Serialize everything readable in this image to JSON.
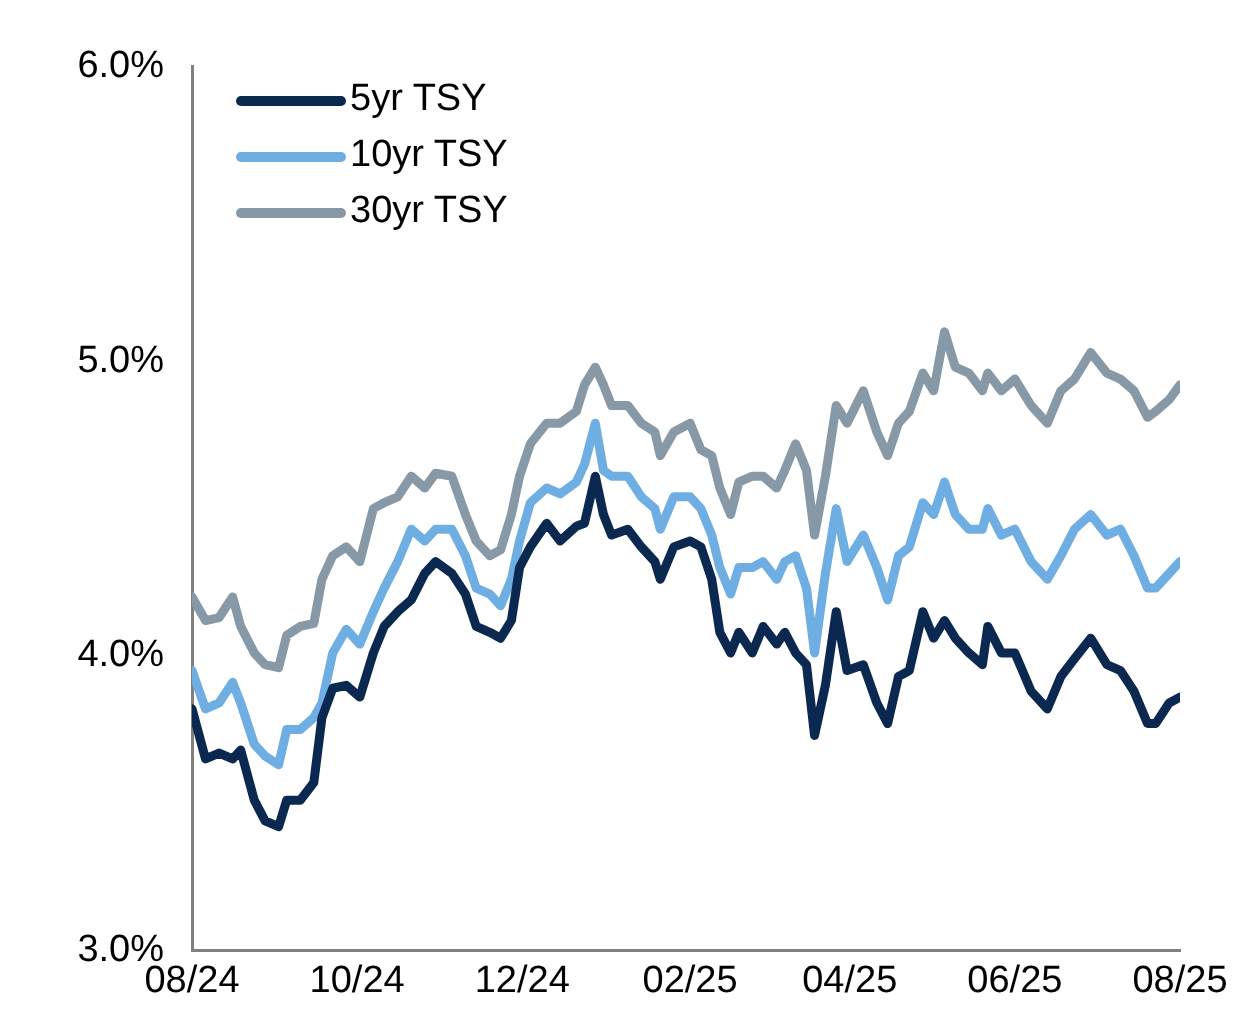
{
  "chart_data": {
    "type": "line",
    "x": [
      "2024-08-01",
      "2024-08-06",
      "2024-08-11",
      "2024-08-16",
      "2024-08-19",
      "2024-08-24",
      "2024-08-28",
      "2024-09-02",
      "2024-09-05",
      "2024-09-10",
      "2024-09-15",
      "2024-09-18",
      "2024-09-22",
      "2024-09-27",
      "2024-10-02",
      "2024-10-07",
      "2024-10-11",
      "2024-10-16",
      "2024-10-21",
      "2024-10-26",
      "2024-10-30",
      "2024-11-05",
      "2024-11-10",
      "2024-11-14",
      "2024-11-19",
      "2024-11-23",
      "2024-11-27",
      "2024-11-30",
      "2024-12-04",
      "2024-12-10",
      "2024-12-15",
      "2024-12-21",
      "2024-12-24",
      "2024-12-28",
      "2024-12-31",
      "2025-01-03",
      "2025-01-09",
      "2025-01-14",
      "2025-01-19",
      "2025-01-21",
      "2025-01-26",
      "2025-02-01",
      "2025-02-05",
      "2025-02-09",
      "2025-02-12",
      "2025-02-16",
      "2025-02-19",
      "2025-02-24",
      "2025-02-28",
      "2025-03-05",
      "2025-03-08",
      "2025-03-12",
      "2025-03-16",
      "2025-03-19",
      "2025-03-23",
      "2025-03-27",
      "2025-03-31",
      "2025-04-06",
      "2025-04-11",
      "2025-04-15",
      "2025-04-19",
      "2025-04-23",
      "2025-04-28",
      "2025-05-02",
      "2025-05-06",
      "2025-05-10",
      "2025-05-15",
      "2025-05-20",
      "2025-05-22",
      "2025-05-27",
      "2025-06-01",
      "2025-06-07",
      "2025-06-13",
      "2025-06-18",
      "2025-06-23",
      "2025-06-29",
      "2025-07-05",
      "2025-07-10",
      "2025-07-15",
      "2025-07-20",
      "2025-07-23",
      "2025-07-28",
      "2025-08-01"
    ],
    "series": [
      {
        "name": "5yr TSY",
        "color": "#0a2850",
        "values": [
          3.82,
          3.65,
          3.67,
          3.65,
          3.68,
          3.51,
          3.44,
          3.42,
          3.51,
          3.51,
          3.57,
          3.79,
          3.89,
          3.9,
          3.86,
          4.01,
          4.1,
          4.15,
          4.19,
          4.28,
          4.32,
          4.28,
          4.21,
          4.1,
          4.08,
          4.06,
          4.12,
          4.3,
          4.37,
          4.45,
          4.39,
          4.44,
          4.45,
          4.61,
          4.48,
          4.41,
          4.43,
          4.37,
          4.32,
          4.26,
          4.37,
          4.39,
          4.37,
          4.26,
          4.08,
          4.01,
          4.08,
          4.01,
          4.1,
          4.04,
          4.08,
          4.01,
          3.97,
          3.73,
          3.9,
          4.15,
          3.95,
          3.97,
          3.84,
          3.77,
          3.93,
          3.95,
          4.15,
          4.06,
          4.12,
          4.06,
          4.01,
          3.97,
          4.1,
          4.01,
          4.01,
          3.88,
          3.82,
          3.93,
          3.99,
          4.06,
          3.97,
          3.95,
          3.88,
          3.77,
          3.77,
          3.84,
          3.86
        ]
      },
      {
        "name": "10yr TSY",
        "color": "#6faee3",
        "values": [
          3.95,
          3.82,
          3.84,
          3.91,
          3.84,
          3.7,
          3.66,
          3.63,
          3.75,
          3.75,
          3.79,
          3.84,
          4.01,
          4.09,
          4.04,
          4.15,
          4.23,
          4.32,
          4.43,
          4.39,
          4.43,
          4.43,
          4.34,
          4.23,
          4.21,
          4.17,
          4.26,
          4.39,
          4.52,
          4.57,
          4.55,
          4.59,
          4.65,
          4.79,
          4.63,
          4.61,
          4.61,
          4.54,
          4.5,
          4.43,
          4.54,
          4.54,
          4.5,
          4.41,
          4.3,
          4.21,
          4.3,
          4.3,
          4.32,
          4.26,
          4.32,
          4.34,
          4.23,
          4.01,
          4.28,
          4.5,
          4.32,
          4.41,
          4.3,
          4.19,
          4.34,
          4.37,
          4.52,
          4.48,
          4.59,
          4.48,
          4.43,
          4.43,
          4.5,
          4.41,
          4.43,
          4.32,
          4.26,
          4.34,
          4.43,
          4.48,
          4.41,
          4.43,
          4.34,
          4.23,
          4.23,
          4.28,
          4.32
        ]
      },
      {
        "name": "30yr TSY",
        "color": "#8799a6",
        "values": [
          4.2,
          4.12,
          4.13,
          4.2,
          4.1,
          4.01,
          3.97,
          3.96,
          4.07,
          4.1,
          4.11,
          4.26,
          4.34,
          4.37,
          4.32,
          4.5,
          4.52,
          4.54,
          4.61,
          4.57,
          4.62,
          4.61,
          4.48,
          4.39,
          4.34,
          4.36,
          4.48,
          4.61,
          4.72,
          4.79,
          4.79,
          4.83,
          4.92,
          4.98,
          4.92,
          4.85,
          4.85,
          4.79,
          4.76,
          4.68,
          4.76,
          4.79,
          4.7,
          4.68,
          4.57,
          4.48,
          4.59,
          4.61,
          4.61,
          4.57,
          4.63,
          4.72,
          4.63,
          4.41,
          4.61,
          4.85,
          4.79,
          4.9,
          4.76,
          4.68,
          4.79,
          4.83,
          4.96,
          4.9,
          5.1,
          4.98,
          4.96,
          4.9,
          4.96,
          4.9,
          4.94,
          4.85,
          4.79,
          4.9,
          4.94,
          5.03,
          4.96,
          4.94,
          4.9,
          4.81,
          4.83,
          4.87,
          4.92
        ]
      }
    ],
    "xlim": [
      "2024-08-01",
      "2025-08-01"
    ],
    "xticks": [
      {
        "value": "2024-08-01",
        "label": "08/24"
      },
      {
        "value": "2024-10-01",
        "label": "10/24"
      },
      {
        "value": "2024-12-01",
        "label": "12/24"
      },
      {
        "value": "2025-02-01",
        "label": "02/25"
      },
      {
        "value": "2025-04-01",
        "label": "04/25"
      },
      {
        "value": "2025-06-01",
        "label": "06/25"
      },
      {
        "value": "2025-08-01",
        "label": "08/25"
      }
    ],
    "ylim": [
      3,
      6
    ],
    "yticks": [
      {
        "value": 3,
        "label": "3.0%"
      },
      {
        "value": 4,
        "label": "4.0%"
      },
      {
        "value": 5,
        "label": "5.0%"
      },
      {
        "value": 6,
        "label": "6.0%"
      }
    ],
    "grid": false,
    "legend": "top left",
    "marker": "none",
    "line_style": "solid"
  }
}
